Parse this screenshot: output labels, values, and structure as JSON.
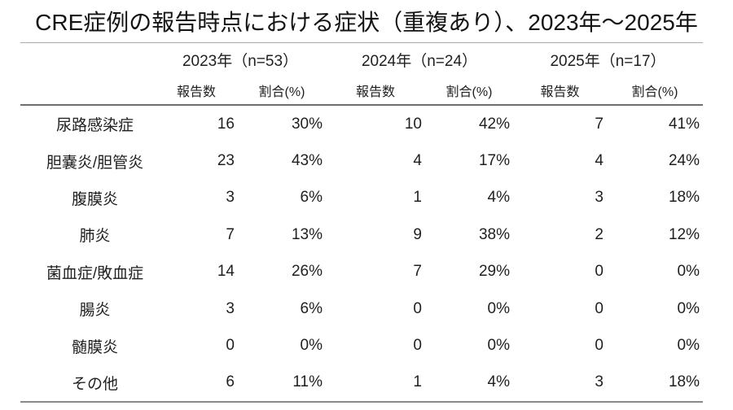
{
  "page": {
    "background": "#ffffff",
    "text_color": "#1f1f1f",
    "rule_color_light": "#a9a9a9",
    "rule_color_dark": "#6e6e6e"
  },
  "chart_data": {
    "type": "table",
    "title": "CRE症例の報告時点における症状（重複あり）、2023年～2025年",
    "column_groups": [
      {
        "label": "2023年（n=53）",
        "n": 53
      },
      {
        "label": "2024年（n=24）",
        "n": 24
      },
      {
        "label": "2025年（n=17）",
        "n": 17
      }
    ],
    "sub_columns": [
      "報告数",
      "割合(%)"
    ],
    "rows": [
      {
        "label": "尿路感染症",
        "values": [
          "16",
          "30%",
          "10",
          "42%",
          "7",
          "41%"
        ]
      },
      {
        "label": "胆嚢炎/胆管炎",
        "values": [
          "23",
          "43%",
          "4",
          "17%",
          "4",
          "24%"
        ]
      },
      {
        "label": "腹膜炎",
        "values": [
          "3",
          "6%",
          "1",
          "4%",
          "3",
          "18%"
        ]
      },
      {
        "label": "肺炎",
        "values": [
          "7",
          "13%",
          "9",
          "38%",
          "2",
          "12%"
        ]
      },
      {
        "label": "菌血症/敗血症",
        "values": [
          "14",
          "26%",
          "7",
          "29%",
          "0",
          "0%"
        ]
      },
      {
        "label": "腸炎",
        "values": [
          "3",
          "6%",
          "0",
          "0%",
          "0",
          "0%"
        ]
      },
      {
        "label": "髄膜炎",
        "values": [
          "0",
          "0%",
          "0",
          "0%",
          "0",
          "0%"
        ]
      },
      {
        "label": "その他",
        "values": [
          "6",
          "11%",
          "1",
          "4%",
          "3",
          "18%"
        ]
      }
    ]
  }
}
